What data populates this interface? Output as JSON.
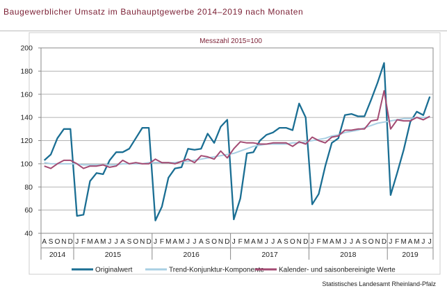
{
  "title": "Baugewerblicher Umsatz im Bauhauptgewerbe 2014–2019 nach Monaten",
  "source": "Statistisches Landesamt Rheinland-Pfalz",
  "chart_data": {
    "type": "line",
    "subtitle": "Messzahl 2015=100",
    "ylim": [
      40,
      200
    ],
    "yticks": [
      40,
      60,
      80,
      100,
      120,
      140,
      160,
      180,
      200
    ],
    "grid": "horizontal",
    "legend_position": "bottom",
    "month_labels": [
      "A",
      "S",
      "O",
      "N",
      "D",
      "J",
      "F",
      "M",
      "A",
      "M",
      "J",
      "J",
      "A",
      "S",
      "O",
      "N",
      "D",
      "J",
      "F",
      "M",
      "A",
      "M",
      "J",
      "J",
      "A",
      "S",
      "O",
      "N",
      "D",
      "J",
      "F",
      "M",
      "A",
      "M",
      "J",
      "J",
      "A",
      "S",
      "O",
      "N",
      "D",
      "J",
      "F",
      "M",
      "A",
      "M",
      "J",
      "J",
      "A",
      "S",
      "O",
      "N",
      "D",
      "J",
      "F",
      "M",
      "A",
      "M",
      "J",
      "J"
    ],
    "years": [
      {
        "label": "2014",
        "start": 0,
        "count": 5
      },
      {
        "label": "2015",
        "start": 5,
        "count": 12
      },
      {
        "label": "2016",
        "start": 17,
        "count": 12
      },
      {
        "label": "2017",
        "start": 29,
        "count": 12
      },
      {
        "label": "2018",
        "start": 41,
        "count": 12
      },
      {
        "label": "2019",
        "start": 53,
        "count": 7
      }
    ],
    "series": [
      {
        "name": "Originalwert",
        "color": "#1a6e93",
        "values": [
          103,
          108,
          122,
          130,
          130,
          55,
          56,
          85,
          92,
          91,
          103,
          110,
          110,
          113,
          122,
          131,
          131,
          51,
          63,
          88,
          96,
          97,
          113,
          112,
          113,
          126,
          118,
          132,
          138,
          52,
          70,
          109,
          110,
          120,
          125,
          127,
          131,
          131,
          129,
          152,
          140,
          65,
          74,
          98,
          118,
          122,
          142,
          143,
          141,
          141,
          155,
          170,
          187,
          73,
          92,
          112,
          136,
          145,
          142,
          158
        ]
      },
      {
        "name": "Trend-Konjunktur-Komponente",
        "color": "#a8cfe3",
        "values": [
          101,
          100,
          100,
          100,
          100,
          100,
          99,
          99,
          99,
          99,
          99,
          99,
          100,
          100,
          100,
          100,
          101,
          101,
          101,
          101,
          101,
          102,
          102,
          103,
          104,
          105,
          106,
          107,
          108,
          109,
          111,
          113,
          115,
          116,
          117,
          117,
          117,
          117,
          118,
          118,
          119,
          120,
          121,
          122,
          124,
          125,
          127,
          128,
          129,
          131,
          133,
          135,
          136,
          137,
          138,
          139,
          139,
          140,
          140,
          140
        ]
      },
      {
        "name": "Kalender- und saisonbereinigte Werte",
        "color": "#a34a72",
        "values": [
          98,
          96,
          100,
          103,
          103,
          100,
          96,
          98,
          98,
          99,
          97,
          98,
          103,
          100,
          101,
          100,
          100,
          104,
          101,
          101,
          100,
          102,
          104,
          101,
          107,
          106,
          104,
          111,
          105,
          113,
          119,
          118,
          118,
          117,
          117,
          118,
          118,
          118,
          115,
          119,
          117,
          123,
          120,
          118,
          123,
          124,
          129,
          129,
          130,
          130,
          137,
          138,
          163,
          130,
          138,
          137,
          137,
          140,
          138,
          141
        ]
      }
    ]
  }
}
